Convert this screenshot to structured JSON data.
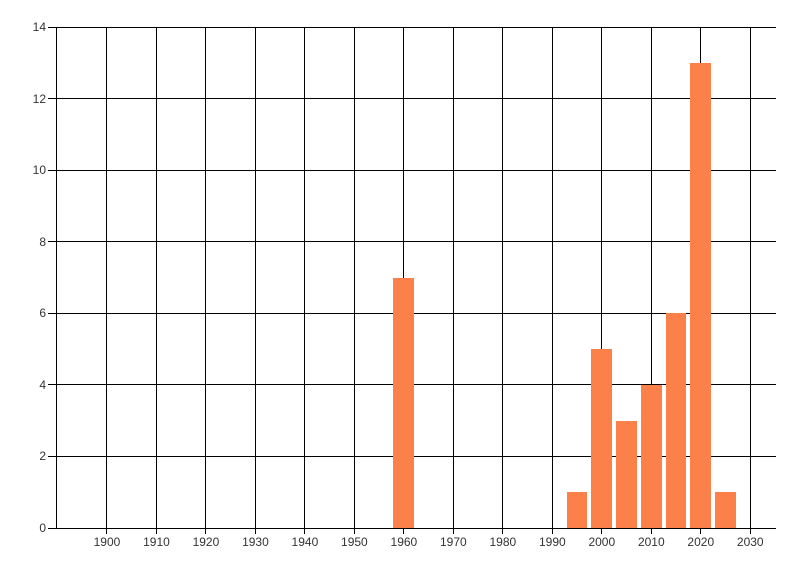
{
  "chart_data": {
    "type": "bar",
    "title": "",
    "xlabel": "",
    "ylabel": "",
    "x": [
      1960,
      1995,
      2000,
      2005,
      2010,
      2015,
      2020,
      2025
    ],
    "values": [
      7,
      1,
      5,
      3,
      4,
      6,
      13,
      1
    ],
    "bar_width_x_units": 4.2,
    "xlim": [
      1889.7,
      2035.2
    ],
    "ylim": [
      0,
      14
    ],
    "x_ticks": [
      1900,
      1910,
      1920,
      1930,
      1940,
      1950,
      1960,
      1970,
      1980,
      1990,
      2000,
      2010,
      2020,
      2030
    ],
    "y_ticks": [
      0,
      2,
      4,
      6,
      8,
      10,
      12,
      14
    ],
    "grid": true,
    "legend": false,
    "colors": {
      "bar": "#FB8049",
      "grid": "#000000",
      "axis": "#000000",
      "tick_label": "#333333",
      "background": "#FFFFFF"
    }
  }
}
